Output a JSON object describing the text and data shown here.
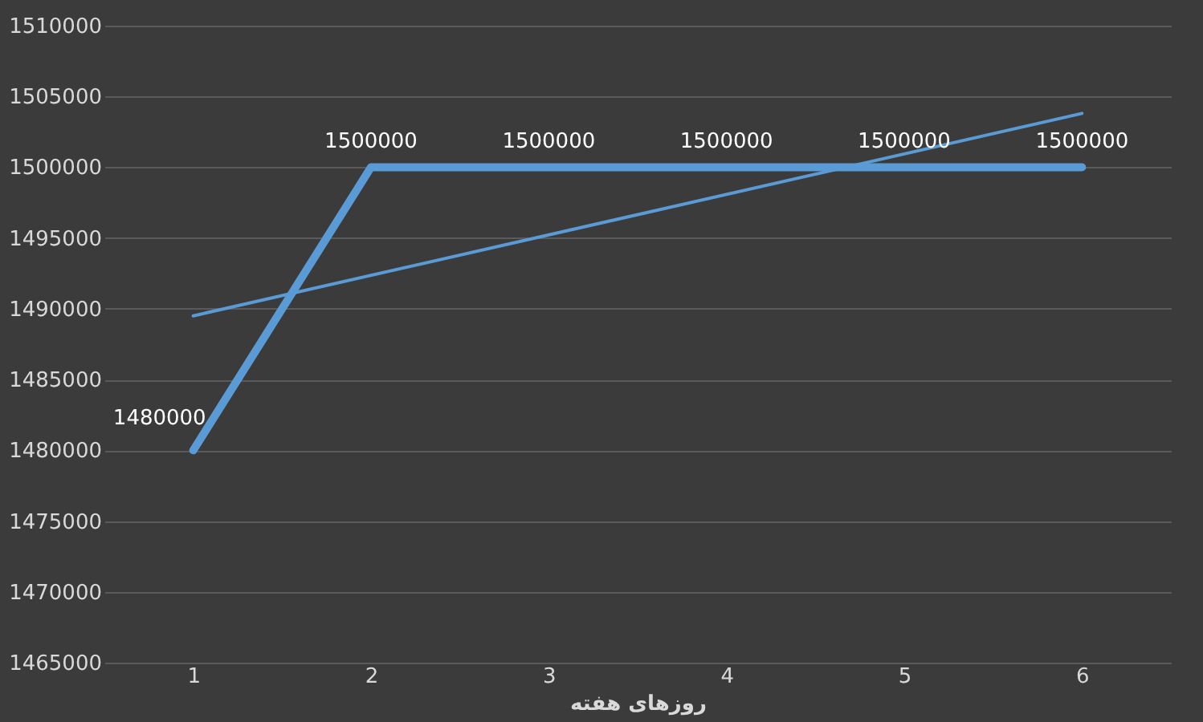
{
  "chart_data": {
    "type": "line",
    "xlabel": "روزهای هفته",
    "categories": [
      "1",
      "2",
      "3",
      "4",
      "5",
      "6"
    ],
    "series": [
      {
        "color": "#5b9bd5",
        "values": [
          1480000,
          1500000,
          1500000,
          1500000,
          1500000,
          1500000
        ],
        "data_labels": true
      },
      {
        "color": "#5b9bd5",
        "x": [
          "1",
          "6"
        ],
        "values": [
          1489500,
          1503800
        ]
      }
    ],
    "ylim": [
      1465000,
      1510000
    ],
    "yticks": [
      1465000,
      1470000,
      1475000,
      1480000,
      1485000,
      1490000,
      1495000,
      1500000,
      1505000,
      1510000
    ],
    "grid": "y"
  }
}
